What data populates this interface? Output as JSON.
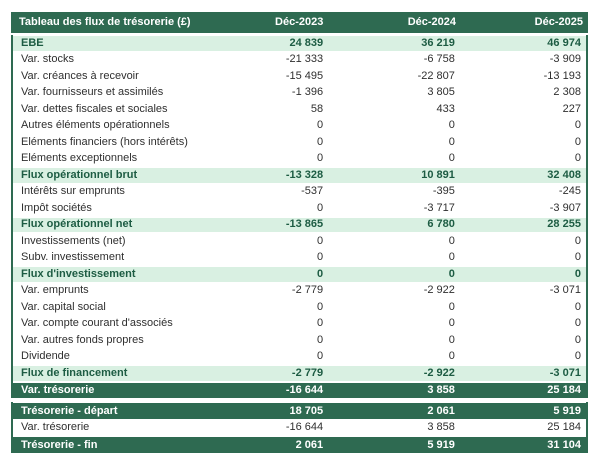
{
  "colors": {
    "header_bg": "#2e6a51",
    "border": "#2e6a51",
    "highlight_bg": "#d9f0e2",
    "highlight_text": "#1d5c43",
    "total_bg": "#2e6a51",
    "total_text": "#ffffff",
    "body_text": "#2f2f2f"
  },
  "chart_data": {
    "type": "table",
    "title": "Tableau des flux de trésorerie (£)",
    "columns": [
      "Déc-2023",
      "Déc-2024",
      "Déc-2025"
    ],
    "rows": [
      {
        "label": "EBE",
        "values": [
          24839,
          36219,
          46974
        ],
        "style": "subtotal"
      },
      {
        "label": "Var. stocks",
        "values": [
          -21333,
          -6758,
          -3909
        ],
        "style": "normal"
      },
      {
        "label": "Var. créances à recevoir",
        "values": [
          -15495,
          -22807,
          -13193
        ],
        "style": "normal"
      },
      {
        "label": "Var. fournisseurs et assimilés",
        "values": [
          -1396,
          3805,
          2308
        ],
        "style": "normal"
      },
      {
        "label": "Var. dettes fiscales et sociales",
        "values": [
          58,
          433,
          227
        ],
        "style": "normal"
      },
      {
        "label": "Autres éléments opérationnels",
        "values": [
          0,
          0,
          0
        ],
        "style": "normal"
      },
      {
        "label": "Eléments financiers (hors intérêts)",
        "values": [
          0,
          0,
          0
        ],
        "style": "normal"
      },
      {
        "label": "Eléments exceptionnels",
        "values": [
          0,
          0,
          0
        ],
        "style": "normal"
      },
      {
        "label": "Flux opérationnel brut",
        "values": [
          -13328,
          10891,
          32408
        ],
        "style": "subtotal"
      },
      {
        "label": "Intérêts sur emprunts",
        "values": [
          -537,
          -395,
          -245
        ],
        "style": "normal"
      },
      {
        "label": "Impôt sociétés",
        "values": [
          0,
          -3717,
          -3907
        ],
        "style": "normal"
      },
      {
        "label": "Flux opérationnel net",
        "values": [
          -13865,
          6780,
          28255
        ],
        "style": "subtotal"
      },
      {
        "label": "Investissements (net)",
        "values": [
          0,
          0,
          0
        ],
        "style": "normal"
      },
      {
        "label": "Subv. investissement",
        "values": [
          0,
          0,
          0
        ],
        "style": "normal"
      },
      {
        "label": "Flux d'investissement",
        "values": [
          0,
          0,
          0
        ],
        "style": "subtotal"
      },
      {
        "label": "Var. emprunts",
        "values": [
          -2779,
          -2922,
          -3071
        ],
        "style": "normal"
      },
      {
        "label": "Var. capital social",
        "values": [
          0,
          0,
          0
        ],
        "style": "normal"
      },
      {
        "label": "Var. compte courant d'associés",
        "values": [
          0,
          0,
          0
        ],
        "style": "normal"
      },
      {
        "label": "Var. autres fonds propres",
        "values": [
          0,
          0,
          0
        ],
        "style": "normal"
      },
      {
        "label": "Dividende",
        "values": [
          0,
          0,
          0
        ],
        "style": "normal"
      },
      {
        "label": "Flux de financement",
        "values": [
          -2779,
          -2922,
          -3071
        ],
        "style": "subtotal"
      },
      {
        "label": "Var. trésorerie",
        "values": [
          -16644,
          3858,
          25184
        ],
        "style": "total"
      }
    ],
    "summary_rows": [
      {
        "label": "Trésorerie - départ",
        "values": [
          18705,
          2061,
          5919
        ],
        "style": "total"
      },
      {
        "label": "Var. trésorerie",
        "values": [
          -16644,
          3858,
          25184
        ],
        "style": "normal"
      },
      {
        "label": "Trésorerie - fin",
        "values": [
          2061,
          5919,
          31104
        ],
        "style": "total"
      }
    ]
  }
}
